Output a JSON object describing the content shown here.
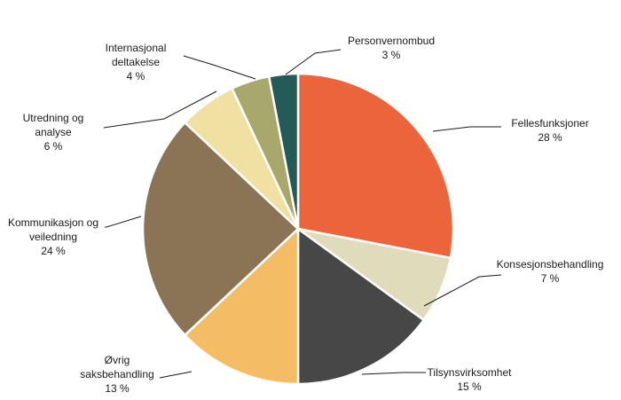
{
  "chart_data": {
    "type": "pie",
    "title": "",
    "slices": [
      {
        "label_lines": [
          "Fellesfunksjoner"
        ],
        "value_label": "28 %",
        "value": 28,
        "color": "#eb643c"
      },
      {
        "label_lines": [
          "Konsesjonsbehandling"
        ],
        "value_label": "7 %",
        "value": 7,
        "color": "#e0dcbb"
      },
      {
        "label_lines": [
          "Tilsynsvirksomhet"
        ],
        "value_label": "15 %",
        "value": 15,
        "color": "#474747"
      },
      {
        "label_lines": [
          "Øvrig",
          "saksbehandling"
        ],
        "value_label": "13 %",
        "value": 13,
        "color": "#f4bc65"
      },
      {
        "label_lines": [
          "Kommunikasjon og",
          "veiledning"
        ],
        "value_label": "24 %",
        "value": 24,
        "color": "#8b7355"
      },
      {
        "label_lines": [
          "Utredning og",
          "analyse"
        ],
        "value_label": "6 %",
        "value": 6,
        "color": "#f0e0a2"
      },
      {
        "label_lines": [
          "Internasjonal",
          "deltakelse"
        ],
        "value_label": "4 %",
        "value": 4,
        "color": "#a8a86c"
      },
      {
        "label_lines": [
          "Personvernombud"
        ],
        "value_label": "3 %",
        "value": 3,
        "color": "#245b57"
      }
    ]
  }
}
